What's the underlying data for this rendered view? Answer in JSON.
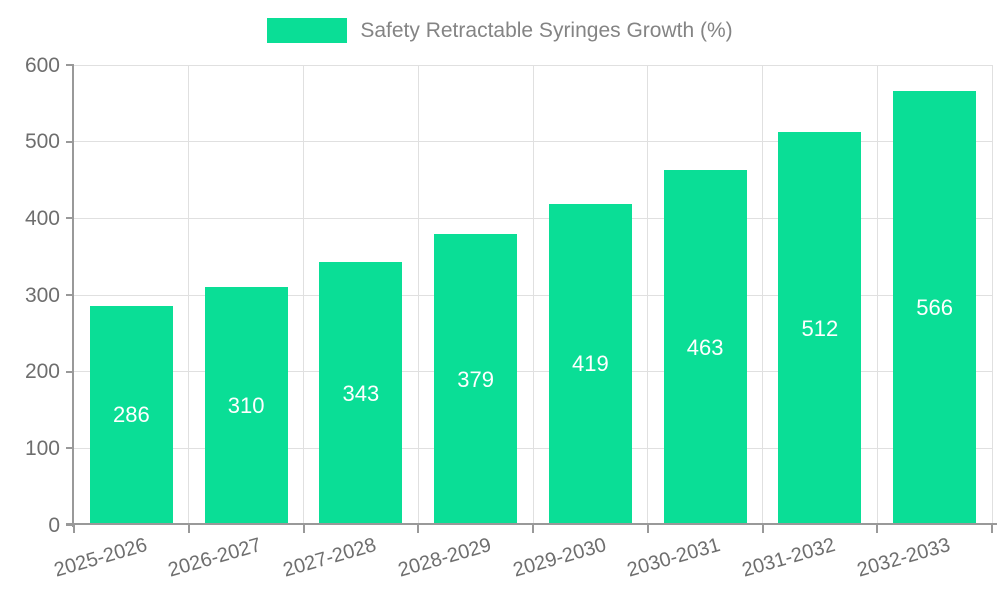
{
  "legend": {
    "label": "Safety Retractable Syringes Growth (%)"
  },
  "chart_data": {
    "type": "bar",
    "title": "Safety Retractable Syringes Growth (%)",
    "categories": [
      "2025-2026",
      "2026-2027",
      "2027-2028",
      "2028-2029",
      "2029-2030",
      "2030-2031",
      "2031-2032",
      "2032-2033"
    ],
    "values": [
      286,
      310,
      343,
      379,
      419,
      463,
      512,
      566
    ],
    "xlabel": "",
    "ylabel": "",
    "ylim": [
      0,
      600
    ],
    "y_ticks": [
      0,
      100,
      200,
      300,
      400,
      500,
      600
    ],
    "grid": true,
    "legend_position": "top-center",
    "bar_color": "#0ade96",
    "value_label_color": "#ffffff",
    "axis_color": "#999999",
    "grid_color": "#e0e0e0",
    "tick_label_color": "#6e6e6e",
    "legend_text_color": "#848484"
  }
}
